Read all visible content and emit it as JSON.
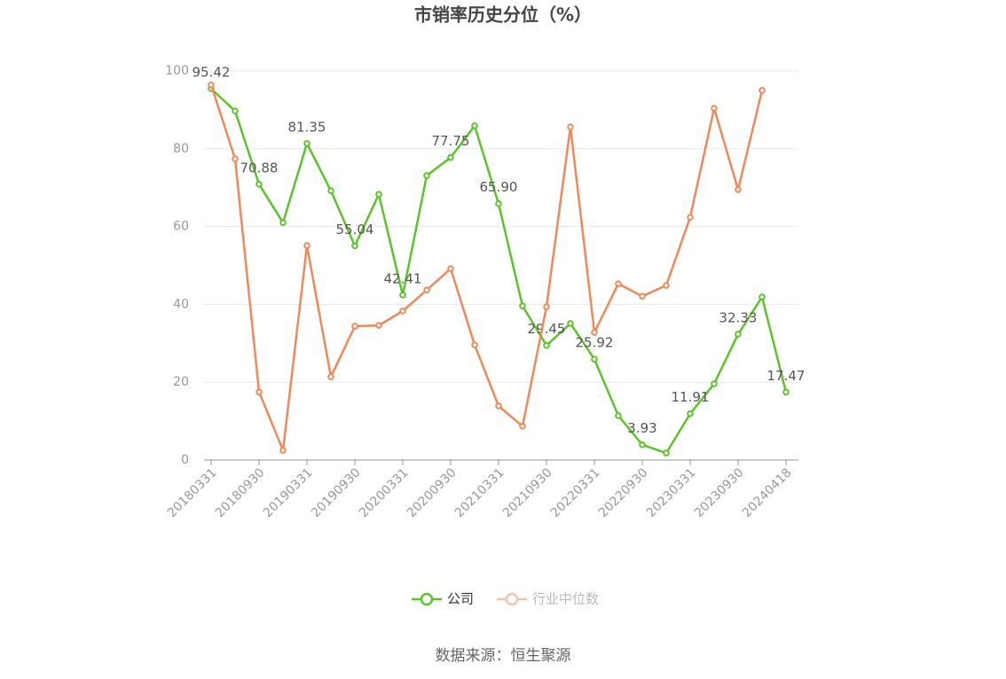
{
  "chart_data": {
    "type": "line",
    "title": "市销率历史分位（%）",
    "source": "数据来源：恒生聚源",
    "categories": [
      "20180331",
      null,
      "20180930",
      null,
      "20190331",
      null,
      "20190930",
      null,
      "20200331",
      null,
      "20200930",
      null,
      "20210331",
      null,
      "20210930",
      null,
      "20220331",
      null,
      "20220930",
      null,
      "20230331",
      null,
      "20230930",
      null,
      "20240418"
    ],
    "series": [
      {
        "name": "公司",
        "color": "#5bc42b",
        "values": [
          95.42,
          89.7,
          70.88,
          61.0,
          81.35,
          69.2,
          55.04,
          68.3,
          42.41,
          73.1,
          77.75,
          85.9,
          65.9,
          39.6,
          29.45,
          35.1,
          25.92,
          11.4,
          3.93,
          1.8,
          11.91,
          19.6,
          32.33,
          41.9,
          17.47
        ],
        "value_labels": [
          "95.42",
          null,
          "70.88",
          null,
          "81.35",
          null,
          "55.04",
          null,
          "42.41",
          null,
          "77.75",
          null,
          "65.90",
          null,
          "29.45",
          null,
          "25.92",
          null,
          "3.93",
          null,
          "11.91",
          null,
          "32.33",
          null,
          "17.47"
        ]
      },
      {
        "name": "行业中位数",
        "color": "#f0895a",
        "values": [
          96.4,
          77.4,
          17.5,
          2.5,
          55.1,
          21.4,
          34.4,
          34.6,
          38.3,
          43.7,
          49.2,
          29.6,
          13.9,
          8.7,
          39.4,
          85.6,
          32.8,
          45.3,
          42.1,
          44.9,
          62.4,
          90.4,
          69.5,
          95.0,
          null
        ]
      }
    ],
    "ylim": [
      0,
      100
    ],
    "yticks": [
      0,
      20,
      40,
      60,
      80,
      100
    ],
    "grid": true,
    "legend": "bottom"
  }
}
